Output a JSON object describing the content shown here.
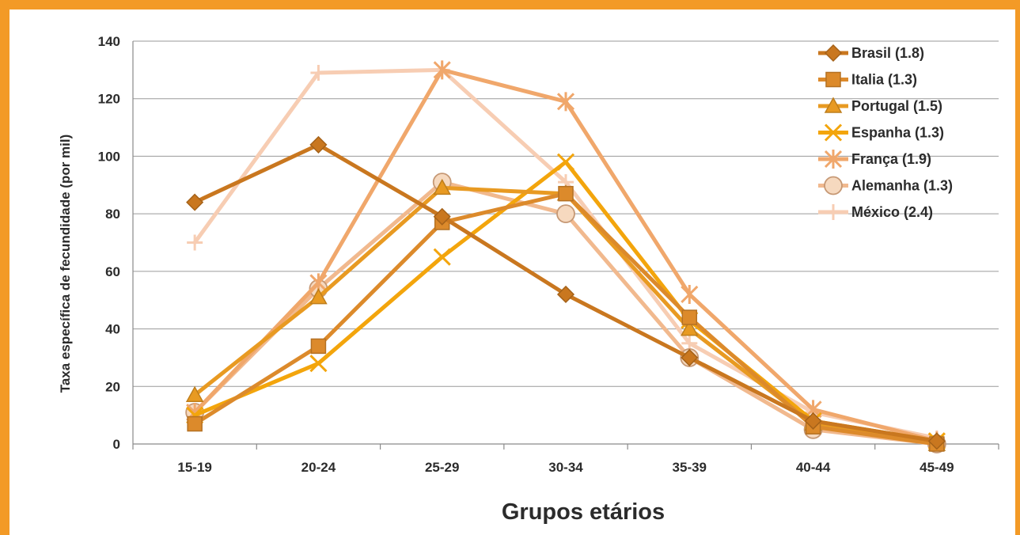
{
  "chart_data": {
    "type": "line",
    "categories": [
      "15-19",
      "20-24",
      "25-29",
      "30-34",
      "35-39",
      "40-44",
      "45-49"
    ],
    "xlabel": "Grupos etários",
    "ylabel": "Taxa específica de fecundidade (por mil)",
    "ylim": [
      0,
      140
    ],
    "yticks": [
      0,
      20,
      40,
      60,
      80,
      100,
      120,
      140
    ],
    "grid": true,
    "legend_position": "top-right",
    "series": [
      {
        "name": "Brasil (1.8)",
        "color": "#c9771f",
        "marker": "diamond",
        "values": [
          84,
          104,
          79,
          52,
          30,
          8,
          1
        ]
      },
      {
        "name": "Italia (1.3)",
        "color": "#dc8a2b",
        "marker": "square",
        "values": [
          7,
          34,
          77,
          87,
          44,
          6,
          0
        ]
      },
      {
        "name": "Portugal (1.5)",
        "color": "#e89a22",
        "marker": "triangle",
        "values": [
          17,
          51,
          89,
          87,
          40,
          7,
          0
        ]
      },
      {
        "name": "Espanha (1.3)",
        "color": "#f3a50c",
        "marker": "x",
        "values": [
          10,
          28,
          65,
          98,
          43,
          8,
          1
        ]
      },
      {
        "name": "França (1.9)",
        "color": "#f0a76b",
        "marker": "star",
        "values": [
          11,
          56,
          130,
          119,
          52,
          12,
          1
        ]
      },
      {
        "name": "Alemanha (1.3)",
        "color": "#f1b98e",
        "marker": "circle",
        "values": [
          11,
          54,
          91,
          80,
          30,
          5,
          0
        ]
      },
      {
        "name": "México (2.4)",
        "color": "#f7cdb3",
        "marker": "plus",
        "values": [
          70,
          129,
          130,
          91,
          35,
          11,
          2
        ]
      }
    ]
  }
}
